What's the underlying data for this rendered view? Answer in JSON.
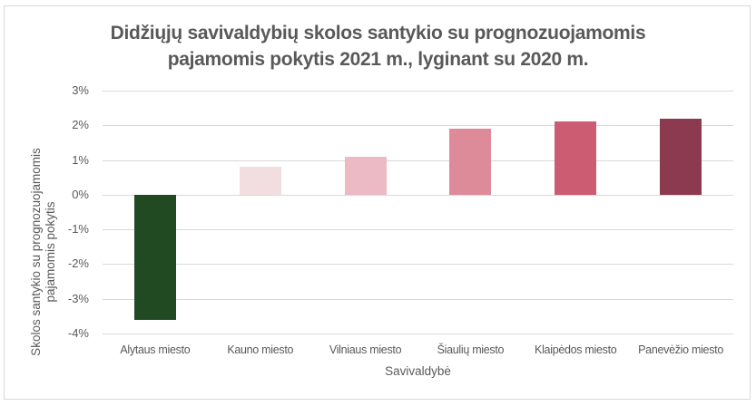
{
  "chart_data": {
    "type": "bar",
    "title": "Didžiųjų savivaldybių skolos santykio su prognozuojamomis pajamomis pokytis 2021 m., lyginant su 2020 m.",
    "title_lines": [
      "Didžiųjų savivaldybių skolos santykio su prognozuojamomis",
      "pajamomis pokytis 2021 m., lyginant su 2020 m."
    ],
    "xlabel": "Savivaldybė",
    "ylabel": "Skolos santykio su prognozuojamomis pajamomis pokytis",
    "ylabel_lines": [
      "Skolos santykio su prognozuojamomis",
      "pajamomis pokytis"
    ],
    "categories": [
      "Alytaus miesto",
      "Kauno miesto",
      "Vilniaus miesto",
      "Šiaulių miesto",
      "Klaipėdos miesto",
      "Panevėžio miesto"
    ],
    "values": [
      -3.6,
      0.8,
      1.1,
      1.9,
      2.1,
      2.2
    ],
    "unit": "%",
    "colors": [
      "#214a22",
      "#f2dde0",
      "#ebbac5",
      "#de8b99",
      "#cc5c72",
      "#8b3a50"
    ],
    "ylim": [
      -4,
      3
    ],
    "yticks": [
      "3%",
      "2%",
      "1%",
      "0%",
      "-1%",
      "-2%",
      "-3%",
      "-4%"
    ],
    "ytick_values": [
      3,
      2,
      1,
      0,
      -1,
      -2,
      -3,
      -4
    ],
    "grid": true,
    "legend": null
  }
}
